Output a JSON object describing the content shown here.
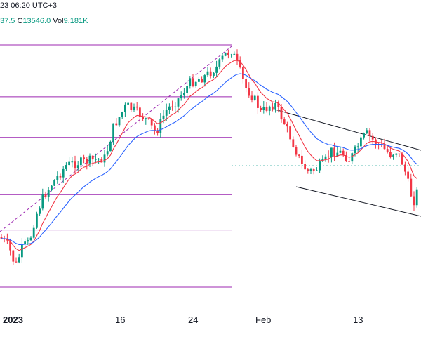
{
  "header": {
    "line1": "23 06:20 UTC+3",
    "ohlc_tail": "37.5",
    "close_label": "C",
    "close_value": "13546.0",
    "vol_label": "Vol",
    "vol_value": "9.181K"
  },
  "colors": {
    "up": "#089981",
    "down": "#f23645",
    "ema_fast": "#f23645",
    "ema_slow": "#2962ff",
    "fib": "#9c27b0",
    "trendline": "#131722"
  },
  "chart_data": {
    "type": "candlestick",
    "x_ticks": [
      "2023",
      "16",
      "24",
      "Feb",
      "13"
    ],
    "y_axis": "hidden",
    "fib_levels": [
      0.0,
      0.236,
      0.382,
      0.5,
      0.618,
      0.786,
      1.0
    ],
    "indicators": [
      "fast moving average (red)",
      "slow moving average (blue)"
    ],
    "drawings": [
      "fibonacci retracement",
      "descending channel"
    ],
    "current_close": 13546.0,
    "volume": "9.181K"
  }
}
